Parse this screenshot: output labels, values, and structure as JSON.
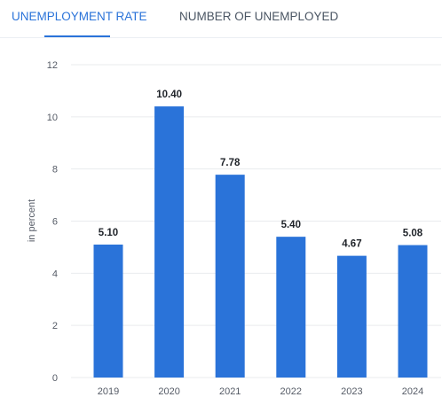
{
  "tabs": [
    {
      "label": "UNEMPLOYMENT RATE",
      "active": true
    },
    {
      "label": "NUMBER OF UNEMPLOYED",
      "active": false
    }
  ],
  "colors": {
    "bar": "#2a73d9",
    "active_tab": "#2a73d9",
    "grid": "#e9ebee",
    "axis_text": "#555b66",
    "label_text": "#1f2329"
  },
  "chart_data": {
    "type": "bar",
    "categories": [
      "2019",
      "2020",
      "2021",
      "2022",
      "2023",
      "2024"
    ],
    "values": [
      5.1,
      10.4,
      7.78,
      5.4,
      4.67,
      5.08
    ],
    "value_labels": [
      "5.10",
      "10.40",
      "7.78",
      "5.40",
      "4.67",
      "5.08"
    ],
    "ylabel": "in percent",
    "ylim": [
      0,
      12
    ],
    "yticks": [
      0,
      2,
      4,
      6,
      8,
      10,
      12
    ],
    "grid": true,
    "legend": "none"
  }
}
